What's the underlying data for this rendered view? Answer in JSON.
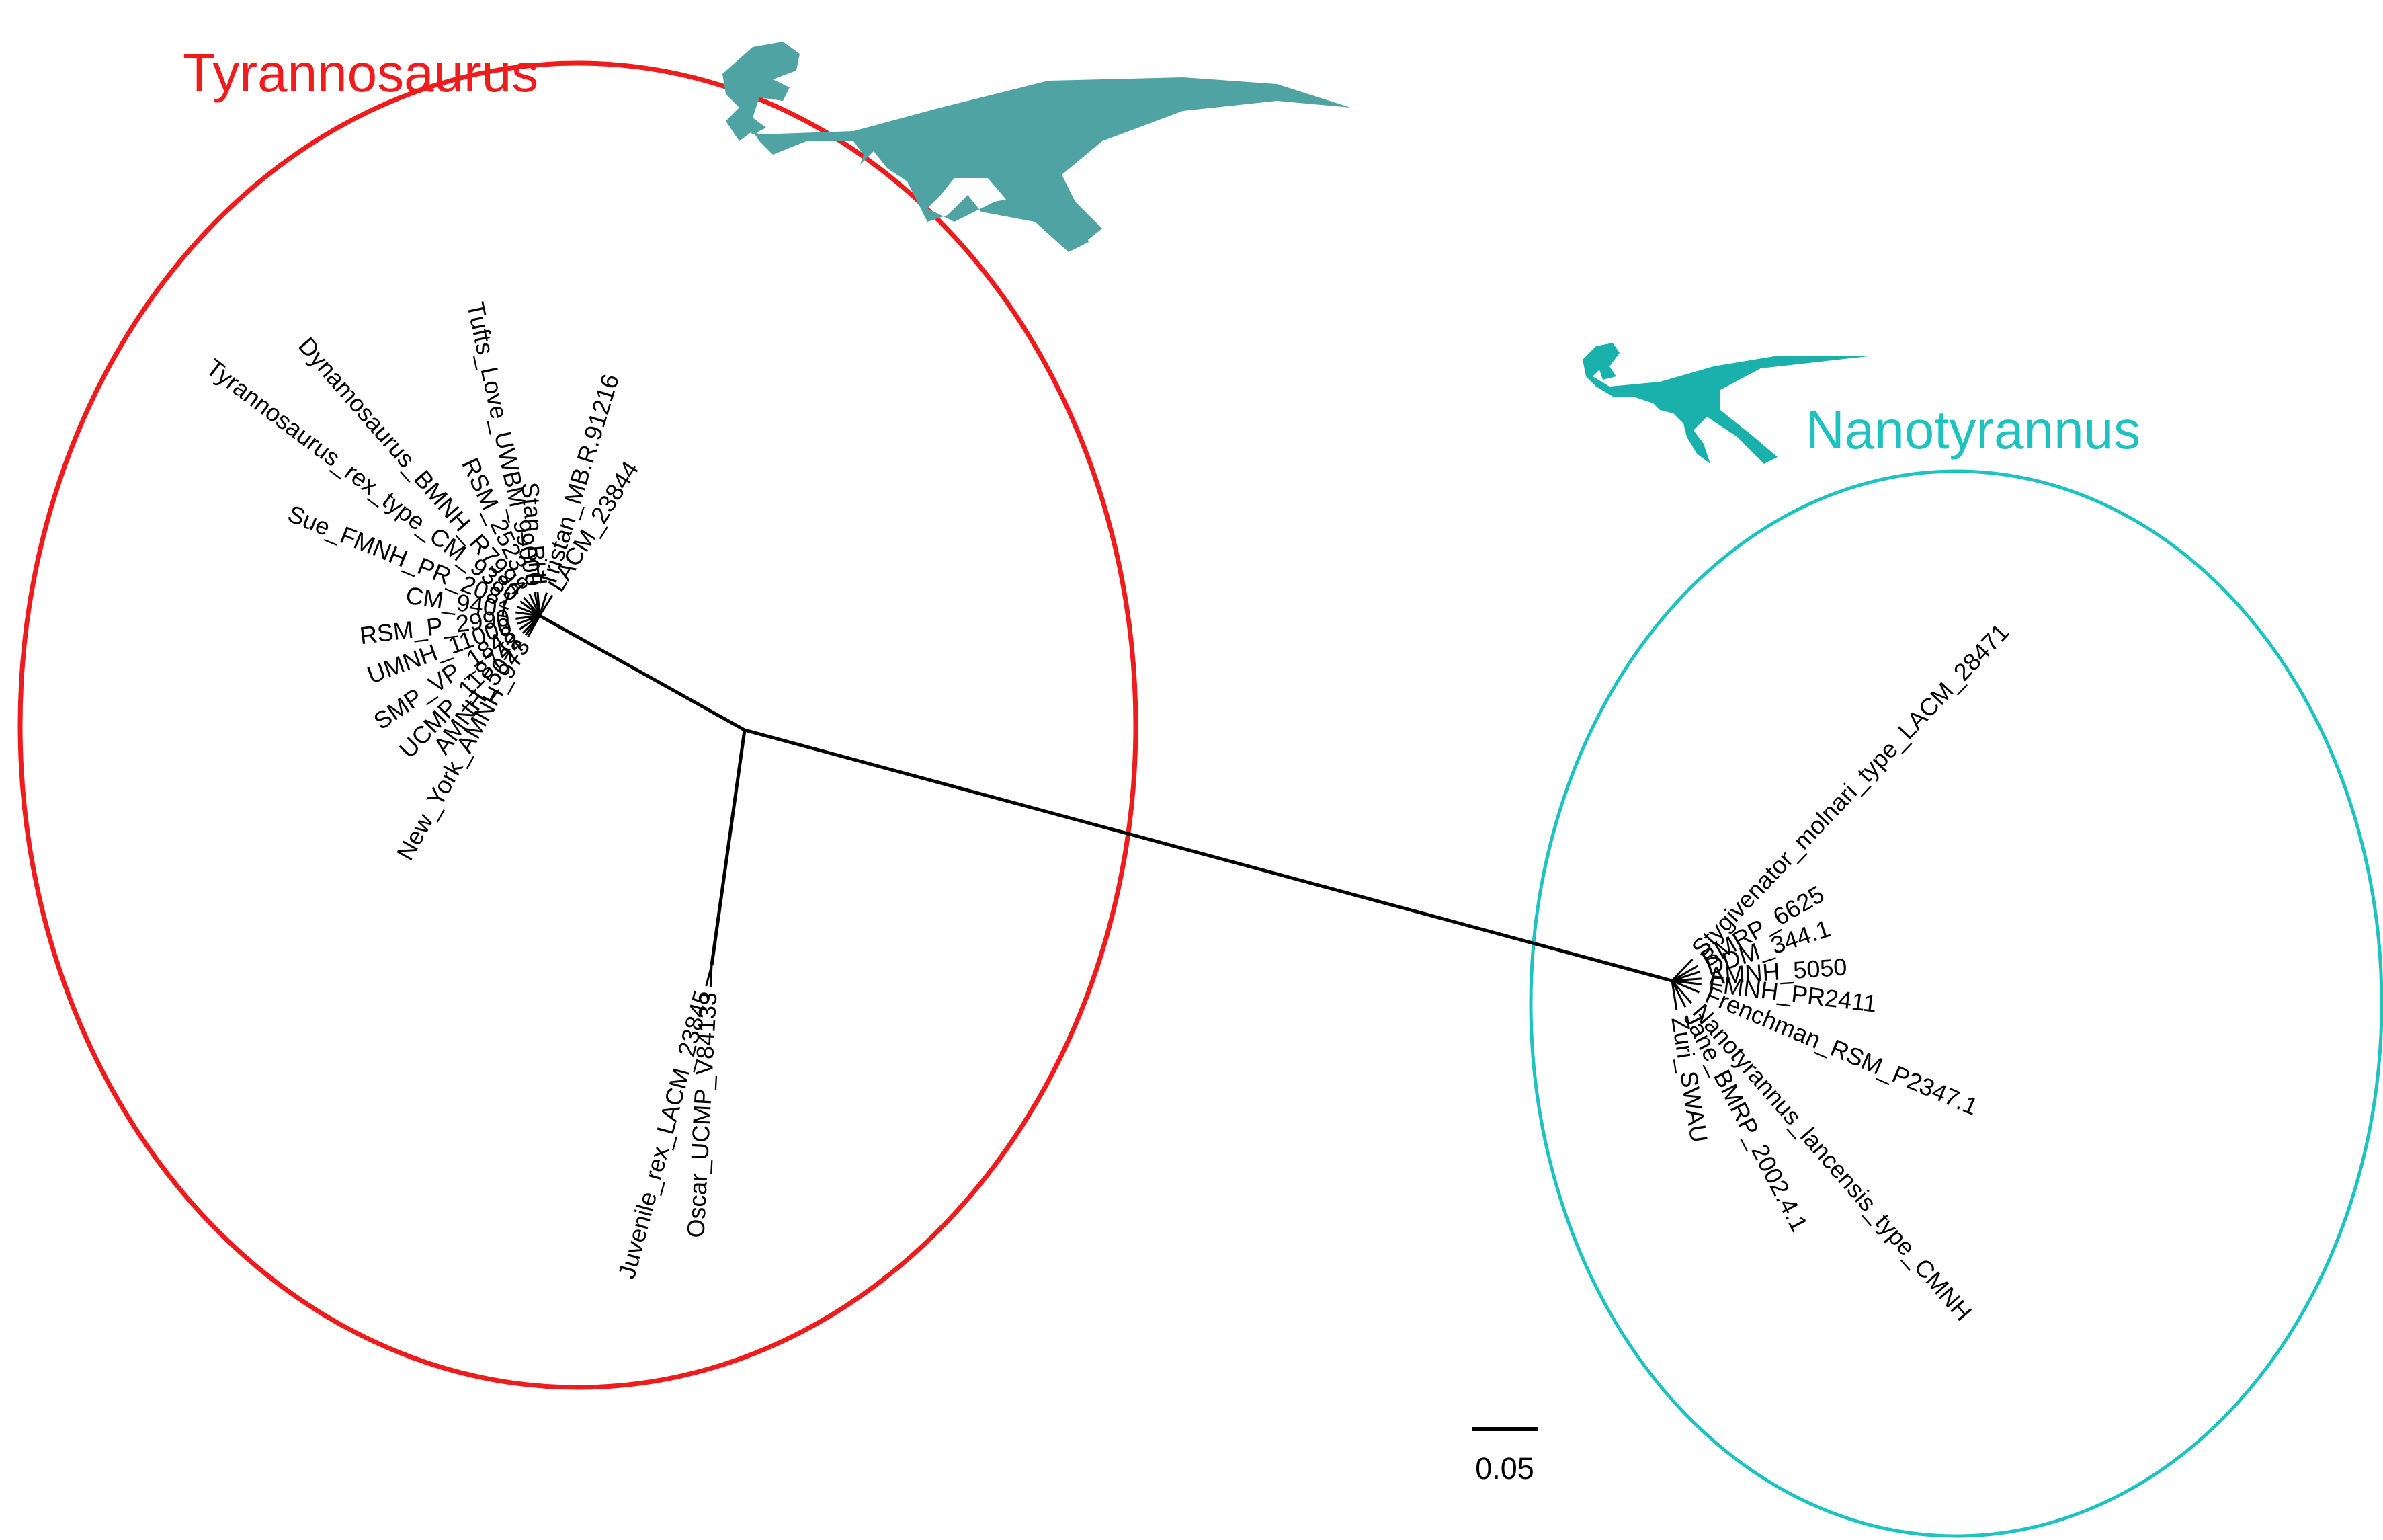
{
  "groups": [
    {
      "title": "Tyrannosaurus",
      "leaves": [
        "Dynamosaurus_BMNH_R7994",
        "Tyrannosaurus_rex_type_CM_9380",
        "RSM_2523.8",
        "Tufts_Love_UWBM_99000",
        "Stan_BHI",
        "Tristan_MB.R.91216",
        "LACM_23844",
        "Sue_FMNH_PR_2081",
        "CM_9401",
        "RSM_P_2990",
        "UMNH_11000",
        "SMP_VP_1848",
        "UCMP_118742",
        "AMNH_5027",
        "New_York_AMNH_973"
      ]
    },
    {
      "title": "Nanotyrannus",
      "leaves": [
        "Stygivenator_molnari_type_LACM_28471",
        "BMRP_6625",
        "DDM_344.1",
        "AMNH_5050",
        "FMNH_PR2411",
        "Frenchman_RSM_P2347.1",
        "Nanotyrannus_lancensis_type_CMNH",
        "Jane_BMRP_2002.4.1",
        "Zuri_SWAU"
      ]
    }
  ],
  "juvenile_leaves": [
    "Juvenile_rex_LACM_23845",
    "Oscar_UCMP_V84133"
  ],
  "scale_bar": {
    "label": "0.05"
  }
}
